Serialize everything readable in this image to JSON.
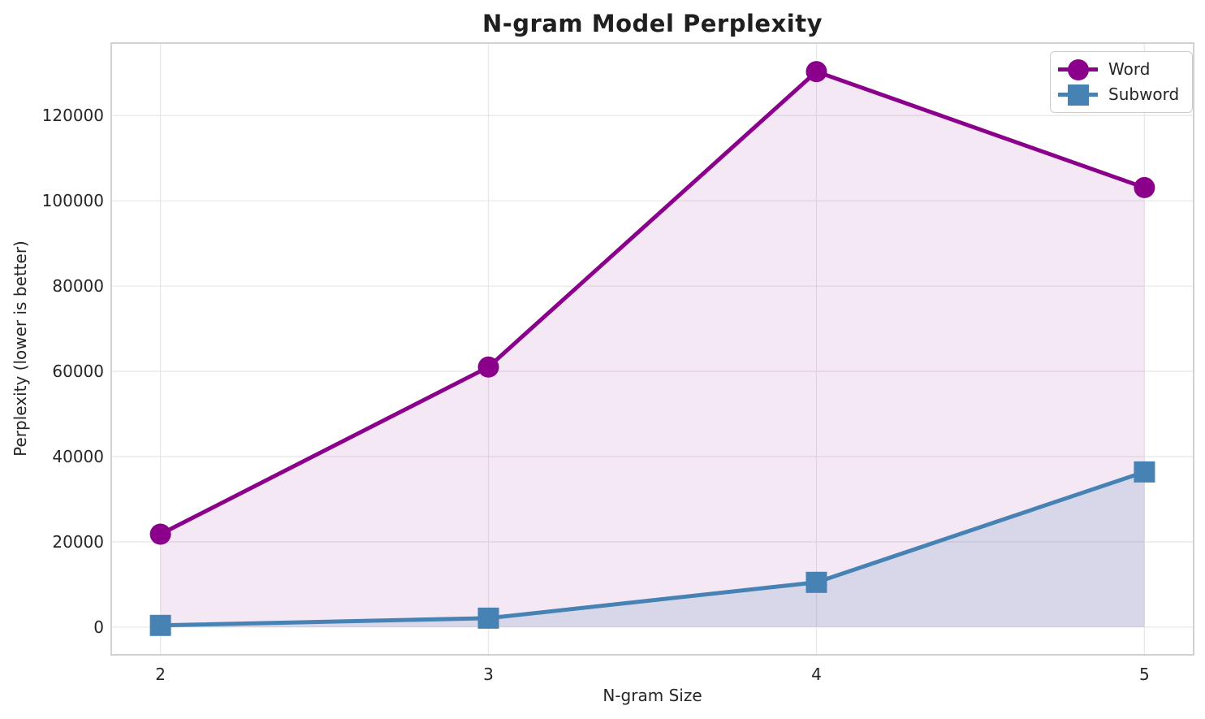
{
  "chart_data": {
    "type": "line",
    "title": "N-gram Model Perplexity",
    "xlabel": "N-gram Size",
    "ylabel": "Perplexity (lower is better)",
    "x": [
      2,
      3,
      4,
      5
    ],
    "x_tick_labels": [
      "2",
      "3",
      "4",
      "5"
    ],
    "y_ticks": [
      0,
      20000,
      40000,
      60000,
      80000,
      100000,
      120000
    ],
    "y_tick_labels": [
      "0",
      "20000",
      "40000",
      "60000",
      "80000",
      "100000",
      "120000"
    ],
    "xlim": [
      1.85,
      5.15
    ],
    "ylim": [
      -6500,
      137000
    ],
    "grid": true,
    "fill_baseline": 0,
    "legend": {
      "position": "upper-right"
    },
    "series": [
      {
        "name": "Word",
        "marker": "circle",
        "color": "#8B008B",
        "fill_opacity": 0.09,
        "values": [
          21800,
          61000,
          130300,
          103100
        ]
      },
      {
        "name": "Subword",
        "marker": "square",
        "color": "#4682B4",
        "fill_opacity": 0.16,
        "values": [
          400,
          2100,
          10500,
          36400
        ]
      }
    ],
    "colors": {
      "grid": "#e8e8e8",
      "spine": "#cccccc",
      "text": "#262626",
      "title": "#1f1f1f",
      "background": "#ffffff"
    }
  }
}
